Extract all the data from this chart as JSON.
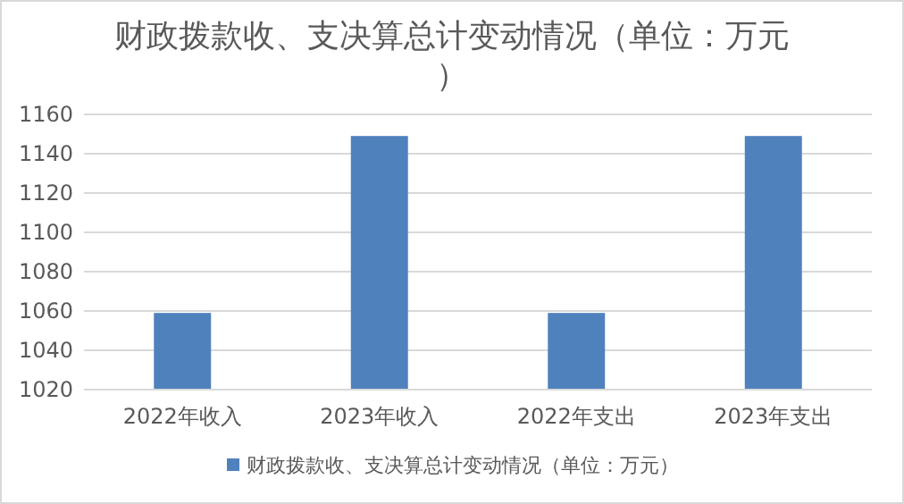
{
  "chart_data": {
    "type": "bar",
    "title": "财政拨款收、支决算总计变动情况（单位：万元）",
    "categories": [
      "2022年收入",
      "2023年收入",
      "2022年支出",
      "2023年支出"
    ],
    "series": [
      {
        "name": "财政拨款收、支决算总计变动情况（单位：万元）",
        "color": "#4f81bd",
        "values": [
          1059,
          1149,
          1059,
          1149
        ]
      }
    ],
    "ylim": [
      1020,
      1160
    ],
    "yticks": [
      1020,
      1040,
      1060,
      1080,
      1100,
      1120,
      1140,
      1160
    ],
    "grid": "y",
    "legend": "bottom"
  }
}
